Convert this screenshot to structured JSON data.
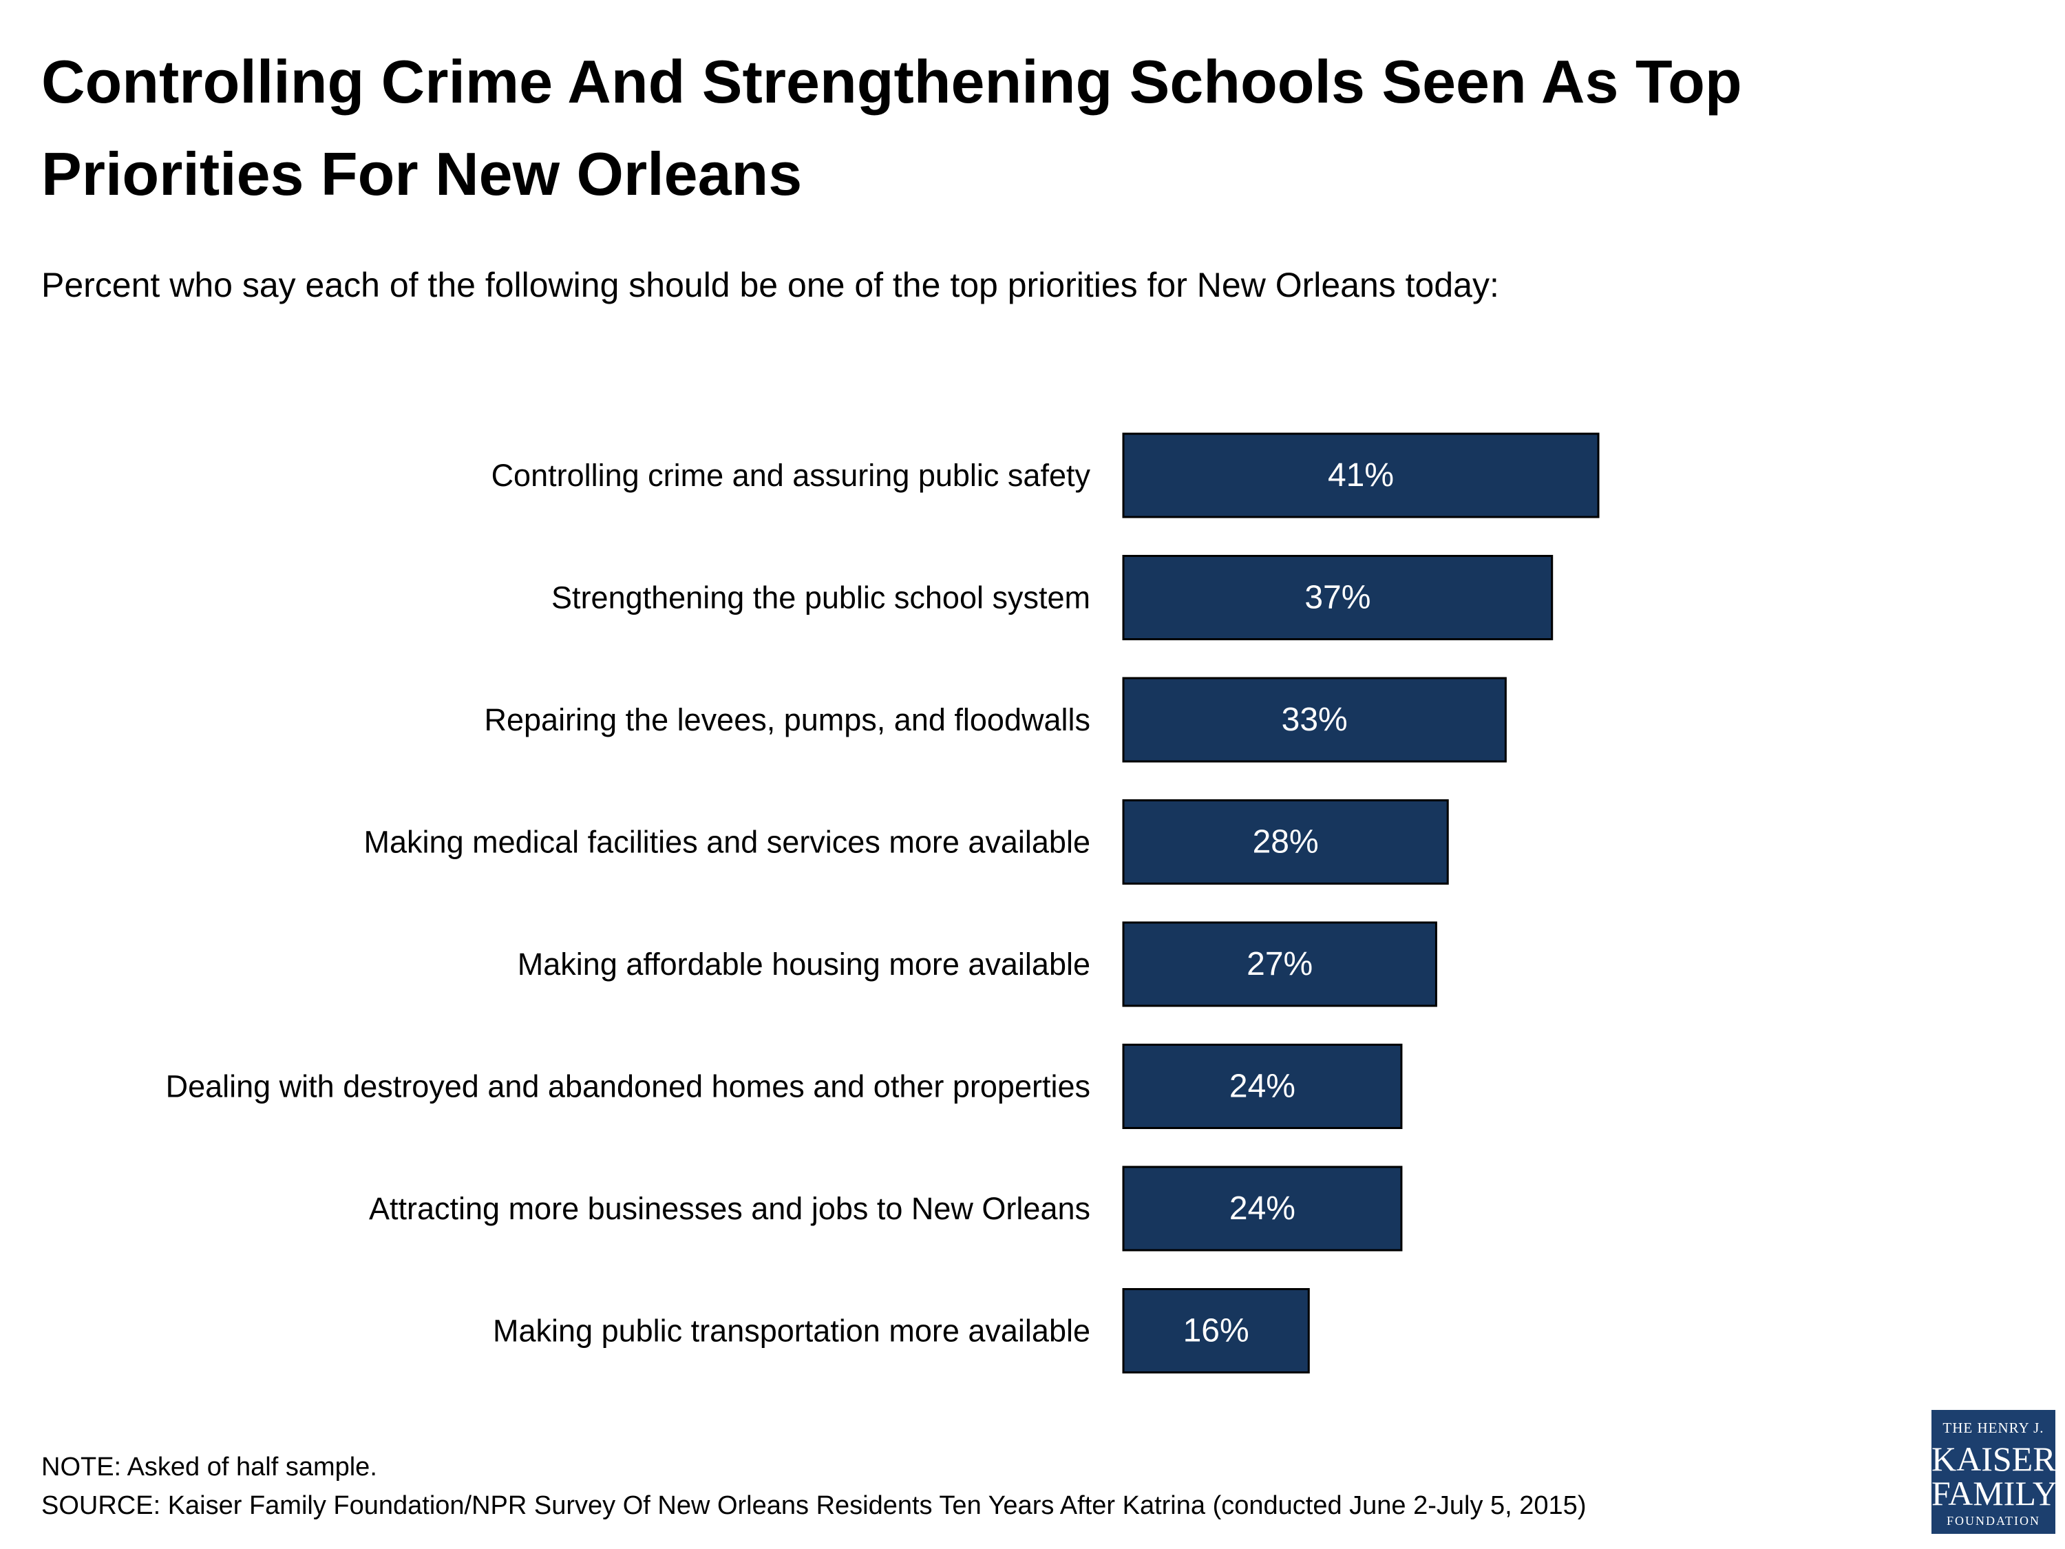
{
  "header": {
    "title": "Controlling Crime And Strengthening Schools Seen As Top Priorities For New Orleans",
    "subtitle": "Percent who say each of the following should be one of the top priorities for New Orleans today:"
  },
  "footer": {
    "note": "NOTE: Asked of half sample.",
    "source": "SOURCE: Kaiser Family Foundation/NPR Survey Of New Orleans Residents Ten Years After Katrina (conducted June 2-July 5, 2015)"
  },
  "logo": {
    "line1": "THE HENRY J.",
    "line2": "KAISER",
    "line3": "FAMILY",
    "line4": "FOUNDATION"
  },
  "colors": {
    "bar": "#17365d",
    "bar_border": "#000000",
    "bar_label": "#ffffff",
    "logo_bg": "#1c3f6e"
  },
  "chart_data": {
    "type": "bar",
    "orientation": "horizontal",
    "title": "Controlling Crime And Strengthening Schools Seen As Top Priorities For New Orleans",
    "subtitle": "Percent who say each of the following should be one of the top priorities for New Orleans today:",
    "categories": [
      "Controlling crime and assuring public safety",
      "Strengthening the public school system",
      "Repairing the levees, pumps, and floodwalls",
      "Making medical facilities and services more available",
      "Making affordable housing more available",
      "Dealing with destroyed and abandoned homes and other properties",
      "Attracting more businesses and jobs to New Orleans",
      "Making public transportation more available"
    ],
    "values": [
      41,
      37,
      33,
      28,
      27,
      24,
      24,
      16
    ],
    "value_labels": [
      "41%",
      "37%",
      "33%",
      "28%",
      "27%",
      "24%",
      "24%",
      "16%"
    ],
    "unit": "%",
    "xlim": [
      0,
      100
    ],
    "grid": false,
    "legend": "none"
  }
}
